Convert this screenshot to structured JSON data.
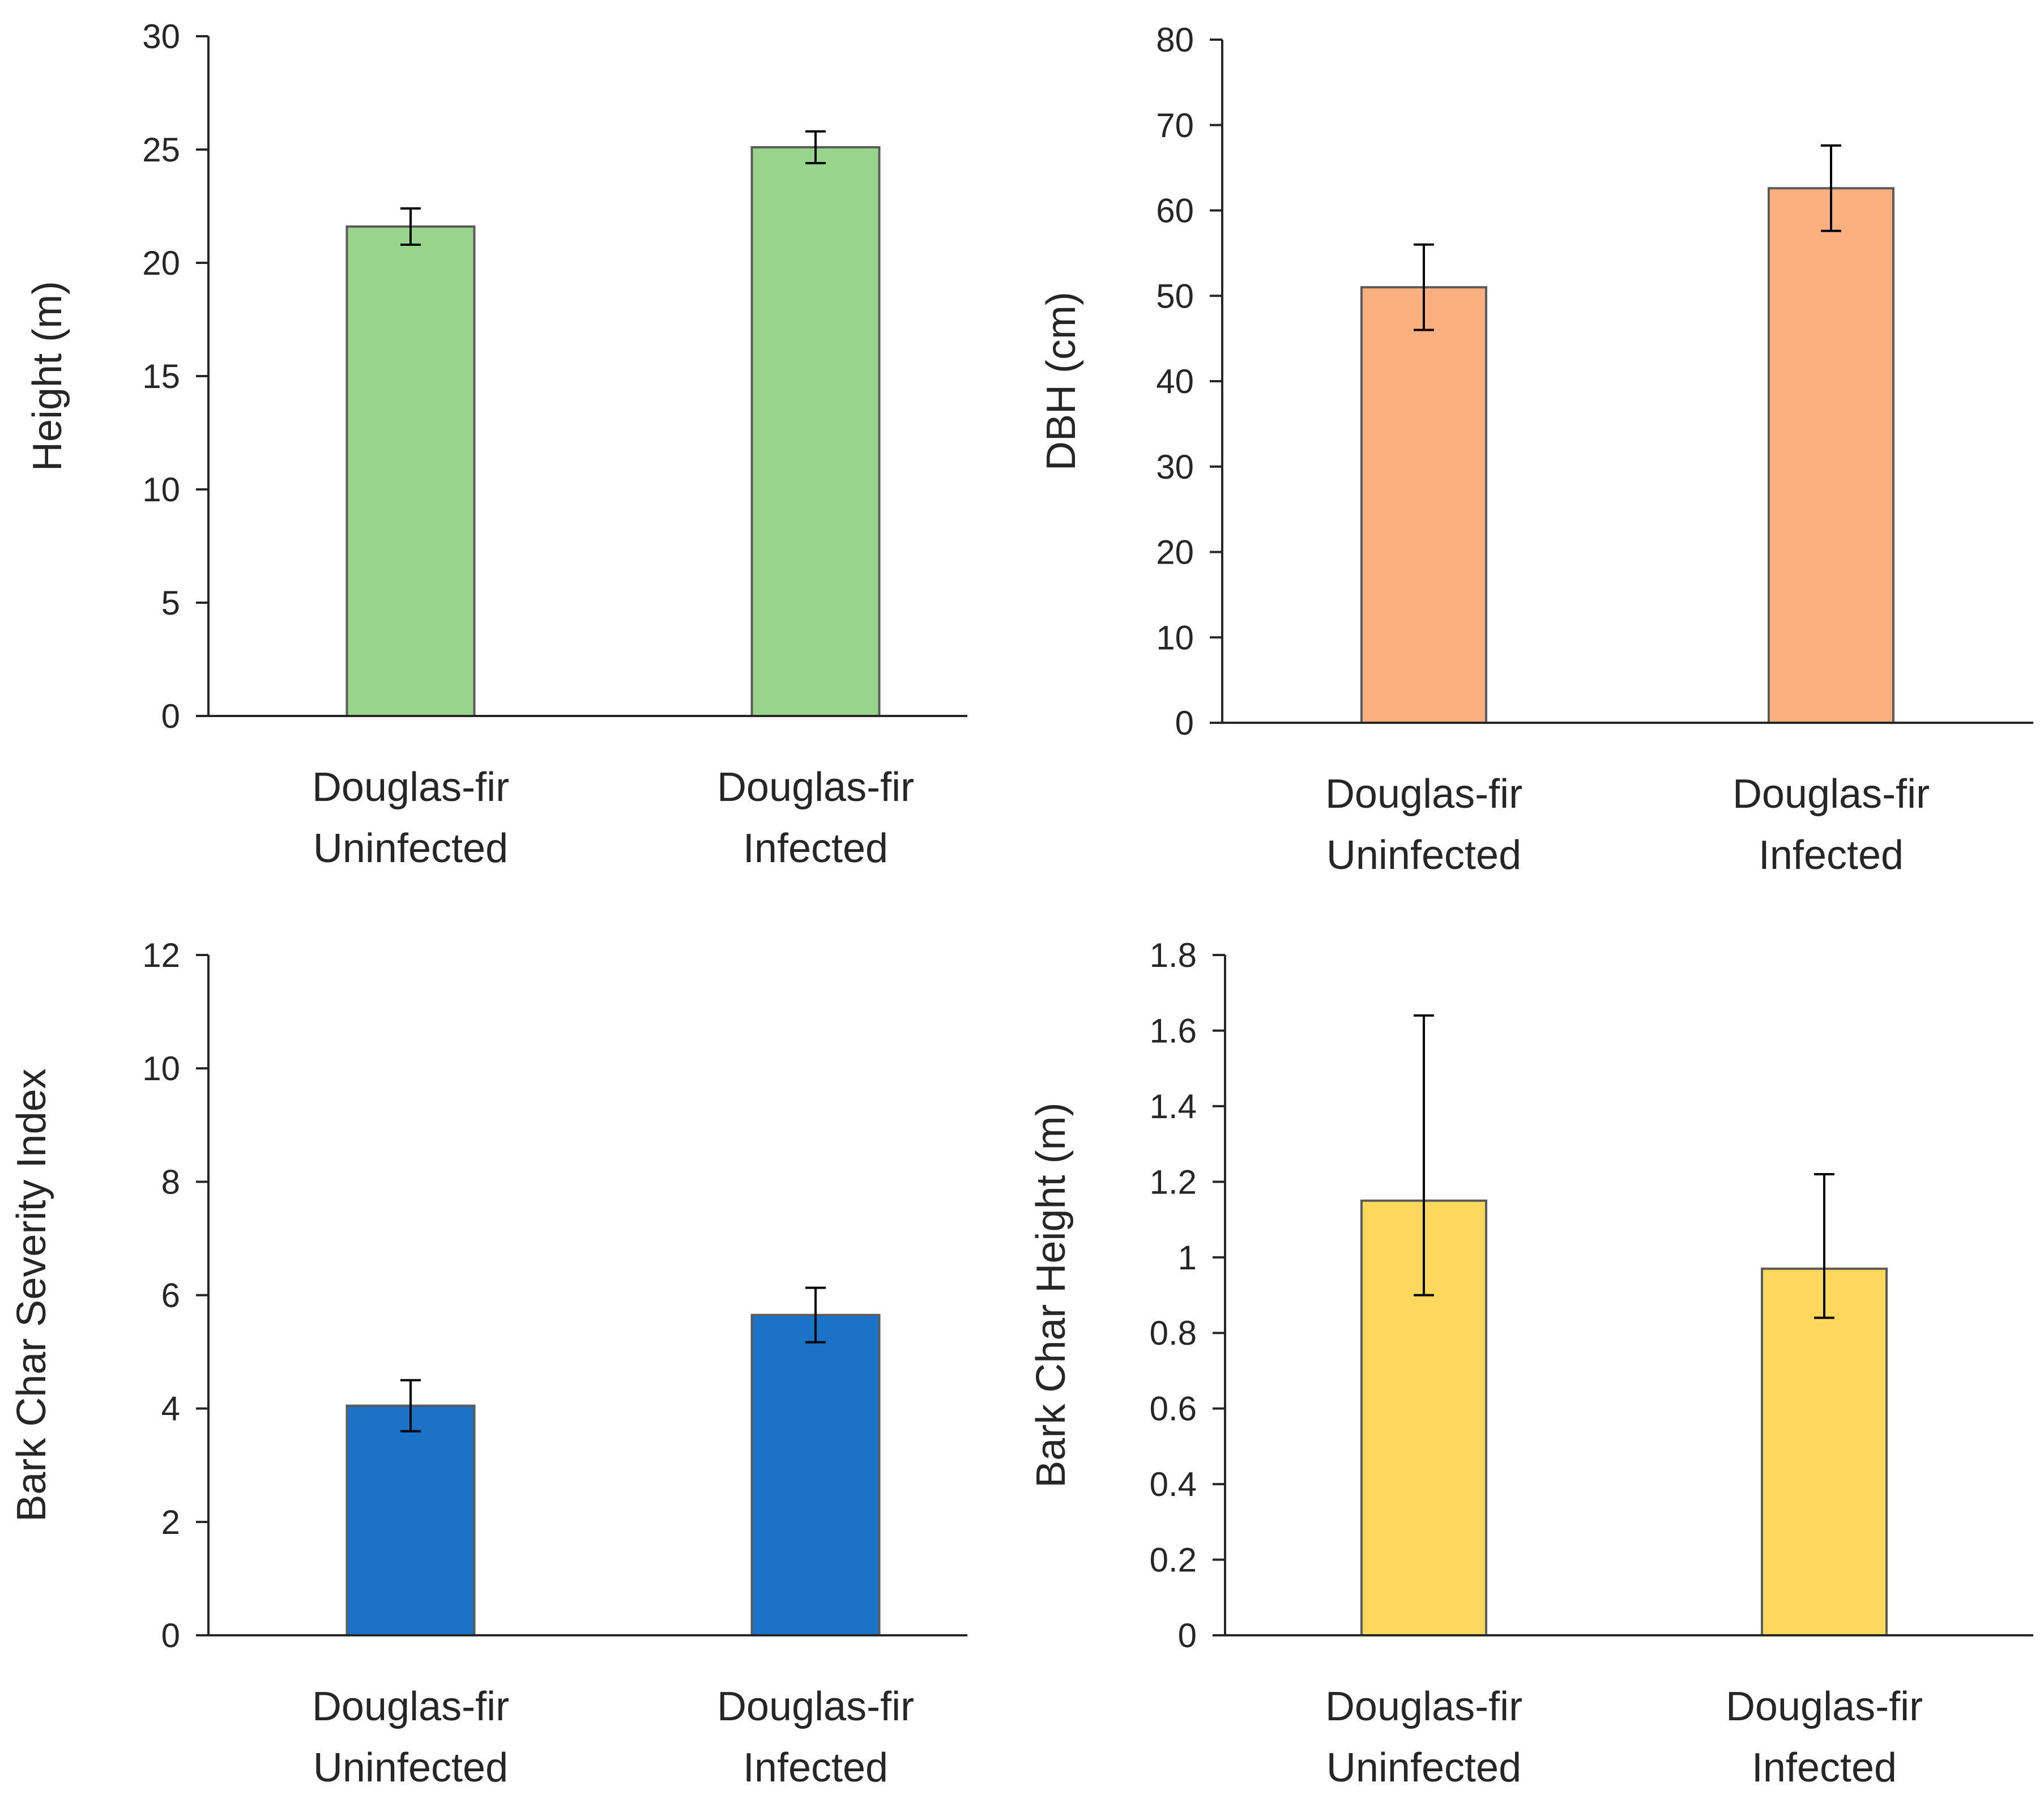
{
  "chart_data": [
    {
      "type": "bar",
      "id": "height",
      "categories": [
        [
          "Douglas-fir",
          "Uninfected"
        ],
        [
          "Douglas-fir",
          "Infected"
        ]
      ],
      "values": [
        21.6,
        25.1
      ],
      "errors": [
        0.8,
        0.7
      ],
      "ylabel": "Height (m)",
      "xlabel": "",
      "ylim": [
        0,
        30
      ],
      "yticks": [
        0,
        5,
        10,
        15,
        20,
        25,
        30
      ],
      "tick_labels": [
        "0",
        "5",
        "10",
        "15",
        "20",
        "25",
        "30"
      ],
      "color": "#98d48b",
      "grid": false
    },
    {
      "type": "bar",
      "id": "dbh",
      "categories": [
        [
          "Douglas-fir",
          "Uninfected"
        ],
        [
          "Douglas-fir",
          "Infected"
        ]
      ],
      "values": [
        51,
        62.6
      ],
      "errors": [
        5,
        5
      ],
      "ylabel": "DBH (cm)",
      "xlabel": "",
      "ylim": [
        0,
        80
      ],
      "yticks": [
        0,
        10,
        20,
        30,
        40,
        50,
        60,
        70,
        80
      ],
      "tick_labels": [
        "0",
        "10",
        "20",
        "30",
        "40",
        "50",
        "60",
        "70",
        "80"
      ],
      "color": "#fcb07f",
      "grid": false
    },
    {
      "type": "bar",
      "id": "severity",
      "categories": [
        [
          "Douglas-fir",
          "Uninfected"
        ],
        [
          "Douglas-fir",
          "Infected"
        ]
      ],
      "values": [
        4.05,
        5.65
      ],
      "errors": [
        0.45,
        0.48
      ],
      "ylabel": "Bark Char Severity Index",
      "xlabel": "",
      "ylim": [
        0,
        12
      ],
      "yticks": [
        0,
        2,
        4,
        6,
        8,
        10,
        12
      ],
      "tick_labels": [
        "0",
        "2",
        "4",
        "6",
        "8",
        "10",
        "12"
      ],
      "color": "#1a73c6",
      "grid": false
    },
    {
      "type": "bar",
      "id": "char-height",
      "categories": [
        [
          "Douglas-fir",
          "Uninfected"
        ],
        [
          "Douglas-fir",
          "Infected"
        ]
      ],
      "values": [
        1.15,
        0.97
      ],
      "errors_low": [
        0.25,
        0.13
      ],
      "errors_high": [
        0.49,
        0.25
      ],
      "ylabel": "Bark Char Height (m)",
      "xlabel": "",
      "ylim": [
        0,
        1.8
      ],
      "yticks": [
        0,
        0.2,
        0.4,
        0.6,
        0.8,
        1,
        1.2,
        1.4,
        1.6,
        1.8
      ],
      "tick_labels": [
        "0",
        "0.2",
        "0.4",
        "0.6",
        "0.8",
        "1",
        "1.2",
        "1.4",
        "1.6",
        "1.8"
      ],
      "color": "#fdd85c",
      "grid": false
    }
  ]
}
